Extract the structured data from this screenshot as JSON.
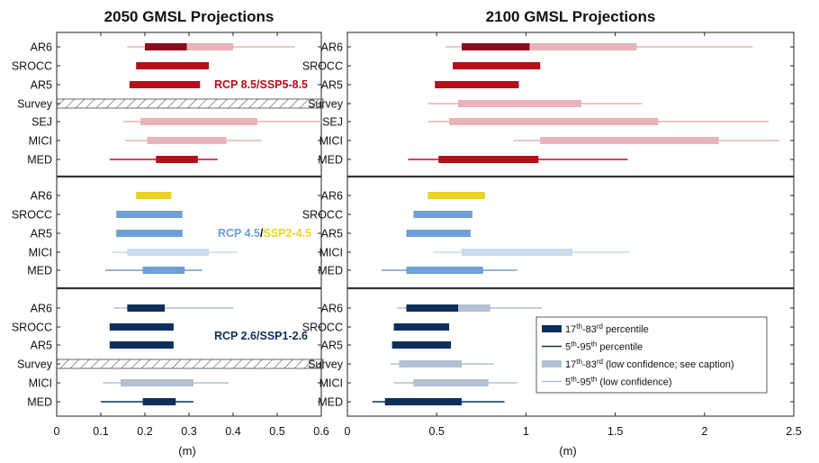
{
  "colors": {
    "rcp85_dark": "#8b0a1c",
    "rcp85": "#b50f1c",
    "rcp85_light": "#e8b4b9",
    "rcp45": "#6f9fd4",
    "rcp45_light": "#c8dbef",
    "ssp245": "#e8d32a",
    "rcp26": "#0e2f5c",
    "rcp26_light": "#b3c1d2"
  },
  "chart_data": [
    {
      "type": "range",
      "title": "2050 GMSL Projections",
      "xlabel": "(m)",
      "xlim": [
        0,
        0.6
      ],
      "xticks": [
        "0",
        "0.1",
        "0.2",
        "0.3",
        "0.4",
        "0.5",
        "0.6"
      ],
      "groups": [
        {
          "label": {
            "parts": [
              {
                "text": "RCP 8.5",
                "color": "#b50f1c"
              },
              {
                "text": "/",
                "color": "#b50f1c"
              },
              {
                "text": "SSP5-8.5",
                "color": "#b50f1c"
              }
            ]
          },
          "rows": [
            {
              "name": "AR6",
              "segments": [
                {
                  "kind": "thin",
                  "x": [
                    0.16,
                    0.54
                  ],
                  "color": "#e8b4b9"
                },
                {
                  "kind": "thick",
                  "x": [
                    0.295,
                    0.4
                  ],
                  "color": "#e8b4b9"
                },
                {
                  "kind": "thick",
                  "x": [
                    0.2,
                    0.295
                  ],
                  "color": "#8b0a1c"
                }
              ]
            },
            {
              "name": "SROCC",
              "segments": [
                {
                  "kind": "thick",
                  "x": [
                    0.18,
                    0.345
                  ],
                  "color": "#b50f1c"
                }
              ]
            },
            {
              "name": "AR5",
              "segments": [
                {
                  "kind": "thick",
                  "x": [
                    0.165,
                    0.325
                  ],
                  "color": "#b50f1c"
                }
              ]
            },
            {
              "name": "Survey",
              "hatched": true,
              "segments": []
            },
            {
              "name": "SEJ",
              "segments": [
                {
                  "kind": "thin",
                  "x": [
                    0.15,
                    0.6
                  ],
                  "color": "#e8b4b9"
                },
                {
                  "kind": "thick",
                  "x": [
                    0.19,
                    0.455
                  ],
                  "color": "#e8b4b9"
                }
              ]
            },
            {
              "name": "MICI",
              "segments": [
                {
                  "kind": "thin",
                  "x": [
                    0.155,
                    0.465
                  ],
                  "color": "#e8b4b9"
                },
                {
                  "kind": "thick",
                  "x": [
                    0.205,
                    0.385
                  ],
                  "color": "#e8b4b9"
                }
              ]
            },
            {
              "name": "MED",
              "segments": [
                {
                  "kind": "thin",
                  "x": [
                    0.12,
                    0.365
                  ],
                  "color": "#b50f1c"
                },
                {
                  "kind": "thick",
                  "x": [
                    0.225,
                    0.32
                  ],
                  "color": "#b50f1c"
                }
              ]
            }
          ]
        },
        {
          "label": {
            "parts": [
              {
                "text": "RCP 4.5",
                "color": "#6f9fd4"
              },
              {
                "text": "/",
                "color": "#111111"
              },
              {
                "text": "SSP2-4.5",
                "color": "#e8d32a"
              }
            ]
          },
          "rows": [
            {
              "name": "AR6",
              "segments": [
                {
                  "kind": "thick",
                  "x": [
                    0.18,
                    0.26
                  ],
                  "color": "#e8d32a"
                }
              ]
            },
            {
              "name": "SROCC",
              "segments": [
                {
                  "kind": "thick",
                  "x": [
                    0.135,
                    0.285
                  ],
                  "color": "#6f9fd4"
                }
              ]
            },
            {
              "name": "AR5",
              "segments": [
                {
                  "kind": "thick",
                  "x": [
                    0.135,
                    0.285
                  ],
                  "color": "#6f9fd4"
                }
              ]
            },
            {
              "name": "MICI",
              "segments": [
                {
                  "kind": "thin",
                  "x": [
                    0.125,
                    0.41
                  ],
                  "color": "#c8dbef"
                },
                {
                  "kind": "thick",
                  "x": [
                    0.16,
                    0.345
                  ],
                  "color": "#c8dbef"
                }
              ]
            },
            {
              "name": "MED",
              "segments": [
                {
                  "kind": "thin",
                  "x": [
                    0.11,
                    0.33
                  ],
                  "color": "#6f9fd4"
                },
                {
                  "kind": "thick",
                  "x": [
                    0.195,
                    0.29
                  ],
                  "color": "#6f9fd4"
                }
              ]
            }
          ]
        },
        {
          "label": {
            "parts": [
              {
                "text": "RCP 2.6",
                "color": "#0e2f5c"
              },
              {
                "text": "/",
                "color": "#0e2f5c"
              },
              {
                "text": "SSP1-2.6",
                "color": "#0e2f5c"
              }
            ]
          },
          "rows": [
            {
              "name": "AR6",
              "segments": [
                {
                  "kind": "thin",
                  "x": [
                    0.13,
                    0.4
                  ],
                  "color": "#b3c1d2"
                },
                {
                  "kind": "thick",
                  "x": [
                    0.16,
                    0.245
                  ],
                  "color": "#0e2f5c"
                }
              ]
            },
            {
              "name": "SROCC",
              "segments": [
                {
                  "kind": "thick",
                  "x": [
                    0.12,
                    0.265
                  ],
                  "color": "#0e2f5c"
                }
              ]
            },
            {
              "name": "AR5",
              "segments": [
                {
                  "kind": "thick",
                  "x": [
                    0.12,
                    0.265
                  ],
                  "color": "#0e2f5c"
                }
              ]
            },
            {
              "name": "Survey",
              "hatched": true,
              "segments": []
            },
            {
              "name": "MICI",
              "segments": [
                {
                  "kind": "thin",
                  "x": [
                    0.105,
                    0.39
                  ],
                  "color": "#b3c1d2"
                },
                {
                  "kind": "thick",
                  "x": [
                    0.145,
                    0.31
                  ],
                  "color": "#b3c1d2"
                }
              ]
            },
            {
              "name": "MED",
              "segments": [
                {
                  "kind": "thin",
                  "x": [
                    0.1,
                    0.31
                  ],
                  "color": "#0e2f5c"
                },
                {
                  "kind": "thick",
                  "x": [
                    0.195,
                    0.27
                  ],
                  "color": "#0e2f5c"
                }
              ]
            }
          ]
        }
      ]
    },
    {
      "type": "range",
      "title": "2100 GMSL Projections",
      "xlabel": "(m)",
      "xlim": [
        0,
        2.5
      ],
      "xticks": [
        "0",
        "0.5",
        "1",
        "1.5",
        "2",
        "2.5"
      ],
      "groups": [
        {
          "rows": [
            {
              "name": "AR6",
              "segments": [
                {
                  "kind": "thin",
                  "x": [
                    0.55,
                    2.27
                  ],
                  "color": "#e8b4b9"
                },
                {
                  "kind": "thick",
                  "x": [
                    1.02,
                    1.62
                  ],
                  "color": "#e8b4b9"
                },
                {
                  "kind": "thick",
                  "x": [
                    0.64,
                    1.02
                  ],
                  "color": "#8b0a1c"
                }
              ]
            },
            {
              "name": "SROCC",
              "segments": [
                {
                  "kind": "thick",
                  "x": [
                    0.59,
                    1.08
                  ],
                  "color": "#b50f1c"
                }
              ]
            },
            {
              "name": "AR5",
              "segments": [
                {
                  "kind": "thick",
                  "x": [
                    0.49,
                    0.96
                  ],
                  "color": "#b50f1c"
                }
              ]
            },
            {
              "name": "Survey",
              "segments": [
                {
                  "kind": "thin",
                  "x": [
                    0.45,
                    1.65
                  ],
                  "color": "#e8b4b9"
                },
                {
                  "kind": "thick",
                  "x": [
                    0.62,
                    1.31
                  ],
                  "color": "#e8b4b9"
                }
              ]
            },
            {
              "name": "SEJ",
              "segments": [
                {
                  "kind": "thin",
                  "x": [
                    0.45,
                    2.36
                  ],
                  "color": "#e8b4b9"
                },
                {
                  "kind": "thick",
                  "x": [
                    0.57,
                    1.74
                  ],
                  "color": "#e8b4b9"
                }
              ]
            },
            {
              "name": "MICI",
              "segments": [
                {
                  "kind": "thin",
                  "x": [
                    0.93,
                    2.42
                  ],
                  "color": "#e8b4b9"
                },
                {
                  "kind": "thick",
                  "x": [
                    1.08,
                    2.08
                  ],
                  "color": "#e8b4b9"
                }
              ]
            },
            {
              "name": "MED",
              "segments": [
                {
                  "kind": "thin",
                  "x": [
                    0.34,
                    1.57
                  ],
                  "color": "#b50f1c"
                },
                {
                  "kind": "thick",
                  "x": [
                    0.51,
                    1.07
                  ],
                  "color": "#b50f1c"
                }
              ]
            }
          ]
        },
        {
          "rows": [
            {
              "name": "AR6",
              "segments": [
                {
                  "kind": "thick",
                  "x": [
                    0.45,
                    0.77
                  ],
                  "color": "#e8d32a"
                }
              ]
            },
            {
              "name": "SROCC",
              "segments": [
                {
                  "kind": "thick",
                  "x": [
                    0.37,
                    0.7
                  ],
                  "color": "#6f9fd4"
                }
              ]
            },
            {
              "name": "AR5",
              "segments": [
                {
                  "kind": "thick",
                  "x": [
                    0.33,
                    0.69
                  ],
                  "color": "#6f9fd4"
                }
              ]
            },
            {
              "name": "MICI",
              "segments": [
                {
                  "kind": "thin",
                  "x": [
                    0.48,
                    1.58
                  ],
                  "color": "#c8dbef"
                },
                {
                  "kind": "thick",
                  "x": [
                    0.64,
                    1.26
                  ],
                  "color": "#c8dbef"
                }
              ]
            },
            {
              "name": "MED",
              "segments": [
                {
                  "kind": "thin",
                  "x": [
                    0.19,
                    0.95
                  ],
                  "color": "#6f9fd4"
                },
                {
                  "kind": "thick",
                  "x": [
                    0.33,
                    0.76
                  ],
                  "color": "#6f9fd4"
                }
              ]
            }
          ]
        },
        {
          "rows": [
            {
              "name": "AR6",
              "segments": [
                {
                  "kind": "thin",
                  "x": [
                    0.28,
                    1.09
                  ],
                  "color": "#b3c1d2"
                },
                {
                  "kind": "thick",
                  "x": [
                    0.62,
                    0.8
                  ],
                  "color": "#b3c1d2"
                },
                {
                  "kind": "thick",
                  "x": [
                    0.33,
                    0.62
                  ],
                  "color": "#0e2f5c"
                }
              ]
            },
            {
              "name": "SROCC",
              "segments": [
                {
                  "kind": "thick",
                  "x": [
                    0.26,
                    0.57
                  ],
                  "color": "#0e2f5c"
                }
              ]
            },
            {
              "name": "AR5",
              "segments": [
                {
                  "kind": "thick",
                  "x": [
                    0.25,
                    0.58
                  ],
                  "color": "#0e2f5c"
                }
              ]
            },
            {
              "name": "Survey",
              "segments": [
                {
                  "kind": "thin",
                  "x": [
                    0.24,
                    0.82
                  ],
                  "color": "#b3c1d2"
                },
                {
                  "kind": "thick",
                  "x": [
                    0.29,
                    0.64
                  ],
                  "color": "#b3c1d2"
                }
              ]
            },
            {
              "name": "MICI",
              "segments": [
                {
                  "kind": "thin",
                  "x": [
                    0.26,
                    0.95
                  ],
                  "color": "#b3c1d2"
                },
                {
                  "kind": "thick",
                  "x": [
                    0.37,
                    0.79
                  ],
                  "color": "#b3c1d2"
                }
              ]
            },
            {
              "name": "MED",
              "segments": [
                {
                  "kind": "thin",
                  "x": [
                    0.14,
                    0.88
                  ],
                  "color": "#0e2f5c"
                },
                {
                  "kind": "thick",
                  "x": [
                    0.21,
                    0.64
                  ],
                  "color": "#0e2f5c"
                }
              ]
            }
          ]
        }
      ]
    }
  ],
  "legend": {
    "placement": "lower-right",
    "items": [
      {
        "kind": "thick",
        "color": "#0e2f5c",
        "pre": "17",
        "sup1": "th",
        "mid": "-83",
        "sup2": "rd",
        "post": " percentile"
      },
      {
        "kind": "thin",
        "color": "#0e2f5c",
        "pre": "5",
        "sup1": "th",
        "mid": "-95",
        "sup2": "th",
        "post": " percentile"
      },
      {
        "kind": "thick",
        "color": "#b3c1d2",
        "pre": "17",
        "sup1": "th",
        "mid": "-83",
        "sup2": "rd",
        "post": " (low confidence; see caption)"
      },
      {
        "kind": "thin",
        "color": "#b3c1d2",
        "pre": "5",
        "sup1": "th",
        "mid": "-95",
        "sup2": "th",
        "post": " (low confidence)"
      }
    ]
  }
}
